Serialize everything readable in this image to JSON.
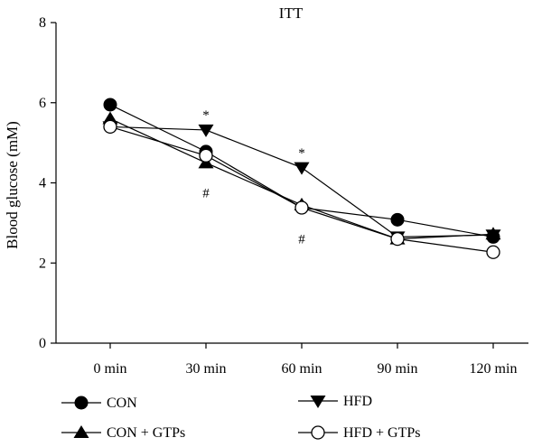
{
  "chart_data": {
    "type": "line",
    "title": "ITT",
    "xlabel": "",
    "ylabel": "Blood glucose (mM)",
    "categories": [
      "0 min",
      "30 min",
      "60 min",
      "90 min",
      "120 min"
    ],
    "ylim": [
      0,
      8
    ],
    "yticks": [
      "0",
      "2",
      "4",
      "6",
      "8"
    ],
    "grid": false,
    "legend_position": "bottom",
    "series": [
      {
        "name": "CON",
        "marker": "filled-circle",
        "values": [
          5.95,
          4.78,
          3.38,
          3.08,
          2.65
        ]
      },
      {
        "name": "HFD",
        "marker": "filled-triangle-down",
        "values": [
          5.4,
          5.32,
          4.38,
          2.65,
          2.7
        ]
      },
      {
        "name": "CON + GTPs",
        "marker": "filled-triangle-up",
        "values": [
          5.6,
          4.5,
          3.45,
          2.6,
          2.72
        ]
      },
      {
        "name": "HFD + GTPs",
        "marker": "open-circle",
        "values": [
          5.4,
          4.68,
          3.38,
          2.6,
          2.27
        ]
      }
    ],
    "annotations": [
      {
        "text": "*",
        "category": "30 min",
        "y": 5.7
      },
      {
        "text": "*",
        "category": "60 min",
        "y": 4.75
      },
      {
        "text": "#",
        "category": "30 min",
        "y": 3.75
      },
      {
        "text": "#",
        "category": "60 min",
        "y": 2.6
      }
    ]
  }
}
